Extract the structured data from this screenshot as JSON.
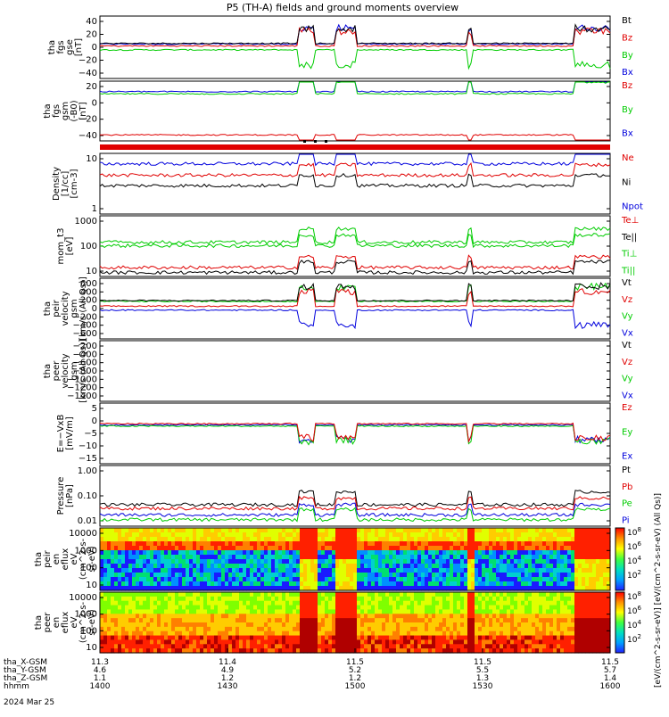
{
  "title": "P5 (TH-A) fields and ground moments overview",
  "colors": {
    "black": "#000000",
    "red": "#e00000",
    "green": "#00cc00",
    "blue": "#0000dd",
    "orange": "#ff8800"
  },
  "chart_data": [
    {
      "type": "line",
      "ylabel": [
        "tha",
        "fgs",
        "gse",
        "[nT]"
      ],
      "yticks": [
        "40",
        "20",
        "0",
        "−20",
        "−40"
      ],
      "ylim": [
        -48,
        48
      ],
      "legend": [
        "Bt",
        "Bz",
        "By",
        "Bx"
      ],
      "legend_colors": [
        "black",
        "red",
        "green",
        "blue"
      ],
      "series": [
        {
          "name": "Bx",
          "base": 5
        },
        {
          "name": "By",
          "base": -4
        },
        {
          "name": "Bz",
          "base": 2
        },
        {
          "name": "Bt",
          "base": 6
        }
      ]
    },
    {
      "type": "line",
      "ylabel": [
        "tha",
        "fgs",
        "gsm",
        "(-B0)",
        "[nT]"
      ],
      "yticks": [
        "20",
        "0",
        "−20",
        "−40"
      ],
      "ylim": [
        -58,
        22
      ],
      "legend": [
        "Bz",
        "By",
        "Bx"
      ],
      "legend_colors": [
        "red",
        "green",
        "blue"
      ],
      "series": [
        {
          "name": "Bx",
          "base": 8
        },
        {
          "name": "By",
          "base": 5
        },
        {
          "name": "Bz",
          "base": -50
        }
      ]
    },
    {
      "type": "line",
      "ylabel": [
        "Density",
        "[1/cc]",
        "[cm-3]"
      ],
      "yticks": [
        "10",
        "1"
      ],
      "yscale": "log",
      "ylim": [
        0.1,
        60
      ],
      "legend": [
        "Ne",
        "Ni",
        "Npot"
      ],
      "legend_colors": [
        "red",
        "black",
        "blue"
      ],
      "series": [
        {
          "name": "Npot",
          "base": 20
        },
        {
          "name": "Ne",
          "base": 6
        },
        {
          "name": "Ni",
          "base": 2
        }
      ]
    },
    {
      "type": "line",
      "ylabel": [
        "mom_t3",
        "[eV]"
      ],
      "yticks": [
        "1000",
        "100",
        "10"
      ],
      "yscale": "log",
      "ylim": [
        6,
        3000
      ],
      "legend": [
        "Te⊥",
        "Te||",
        "Ti⊥",
        "Ti||"
      ],
      "legend_colors": [
        "red",
        "black",
        "green",
        "green"
      ],
      "series": [
        {
          "name": "Ti⊥",
          "base": 200
        },
        {
          "name": "Ti||",
          "base": 140
        },
        {
          "name": "Te⊥",
          "base": 15
        },
        {
          "name": "Te||",
          "base": 9
        }
      ]
    },
    {
      "type": "line",
      "ylabel": [
        "tha",
        "peir",
        "velocity",
        "gsm",
        "[km/s (All Qs)]"
      ],
      "yticks": [
        "600",
        "400",
        "200",
        "0",
        "−200",
        "−400",
        "−600"
      ],
      "ylim": [
        -760,
        760
      ],
      "legend": [
        "Vt",
        "Vz",
        "Vy",
        "Vx"
      ],
      "legend_colors": [
        "black",
        "red",
        "green",
        "blue"
      ],
      "series": [
        {
          "name": "Vx",
          "base": -40
        },
        {
          "name": "Vy",
          "base": 180
        },
        {
          "name": "Vz",
          "base": 60
        },
        {
          "name": "Vt",
          "base": 200
        }
      ]
    },
    {
      "type": "line",
      "ylabel": [
        "tha",
        "peer",
        "velocity",
        "gsm",
        "[km/s (All Qs)]"
      ],
      "yticks": [
        "−200",
        "−400",
        "−600",
        "−800",
        "−1000",
        "−1200",
        "−1400"
      ],
      "ylim": [
        -1500,
        -80
      ],
      "legend": [
        "Vt",
        "Vz",
        "Vy",
        "Vx"
      ],
      "legend_colors": [
        "black",
        "red",
        "green",
        "blue"
      ],
      "series": []
    },
    {
      "type": "line",
      "ylabel": [
        "E=−VxB",
        "[mV/m]"
      ],
      "yticks": [
        "5",
        "0",
        "−5",
        "−10",
        "−15"
      ],
      "ylim": [
        -17,
        8
      ],
      "legend": [
        "Ez",
        "Ey",
        "Ex"
      ],
      "legend_colors": [
        "red",
        "green",
        "blue"
      ],
      "series": [
        {
          "name": "Ex",
          "base": -1
        },
        {
          "name": "Ey",
          "base": -1.5
        },
        {
          "name": "Ez",
          "base": -0.5
        }
      ]
    },
    {
      "type": "line",
      "ylabel": [
        "Pressure",
        "[nPa]"
      ],
      "yticks": [
        "1.00",
        "0.10",
        "0.01"
      ],
      "yscale": "log",
      "ylim": [
        0.006,
        4
      ],
      "legend": [
        "Pt",
        "Pb",
        "Pe",
        "Pi"
      ],
      "legend_colors": [
        "black",
        "red",
        "green",
        "blue"
      ],
      "series": [
        {
          "name": "Pt",
          "base": 0.06
        },
        {
          "name": "Pb",
          "base": 0.04
        },
        {
          "name": "Pi",
          "base": 0.02
        },
        {
          "name": "Pe",
          "base": 0.012
        }
      ]
    },
    {
      "type": "heatmap",
      "ylabel": [
        "tha",
        "peir",
        "en",
        "eflux",
        "eV",
        "(cm^2-s-",
        "sr-eV)"
      ],
      "yticks": [
        "10000",
        "1000",
        "100",
        "10"
      ],
      "yscale": "log"
    },
    {
      "type": "heatmap",
      "ylabel": [
        "tha",
        "peer",
        "en",
        "eflux",
        "eV",
        "(cm^2-s-",
        "sr-eV)"
      ],
      "yticks": [
        "10000",
        "1000",
        "100",
        "10"
      ],
      "yscale": "log"
    }
  ],
  "colorbar": {
    "label": "[eV/(cm^2-s-sr-eV)] [eV/(cm^2-s-sr-eV) (All Qs)]",
    "ticks": [
      "10^8",
      "10^6",
      "10^4",
      "10^2",
      "10^8",
      "10^6",
      "10^4",
      "10^2"
    ]
  },
  "xaxis": {
    "rows": [
      {
        "label": "tha_X-GSM",
        "values": [
          "11.3",
          "11.4",
          "11.5",
          "11.5",
          "11.5"
        ]
      },
      {
        "label": "tha_Y-GSM",
        "values": [
          "4.6",
          "4.9",
          "5.2",
          "5.5",
          "5.7"
        ]
      },
      {
        "label": "tha_Z-GSM",
        "values": [
          "1.1",
          "1.2",
          "1.2",
          "1.3",
          "1.4"
        ]
      },
      {
        "label": "hhmm",
        "values": [
          "1400",
          "1430",
          "1500",
          "1530",
          "1600"
        ]
      }
    ],
    "date": "2024 Mar 25"
  }
}
